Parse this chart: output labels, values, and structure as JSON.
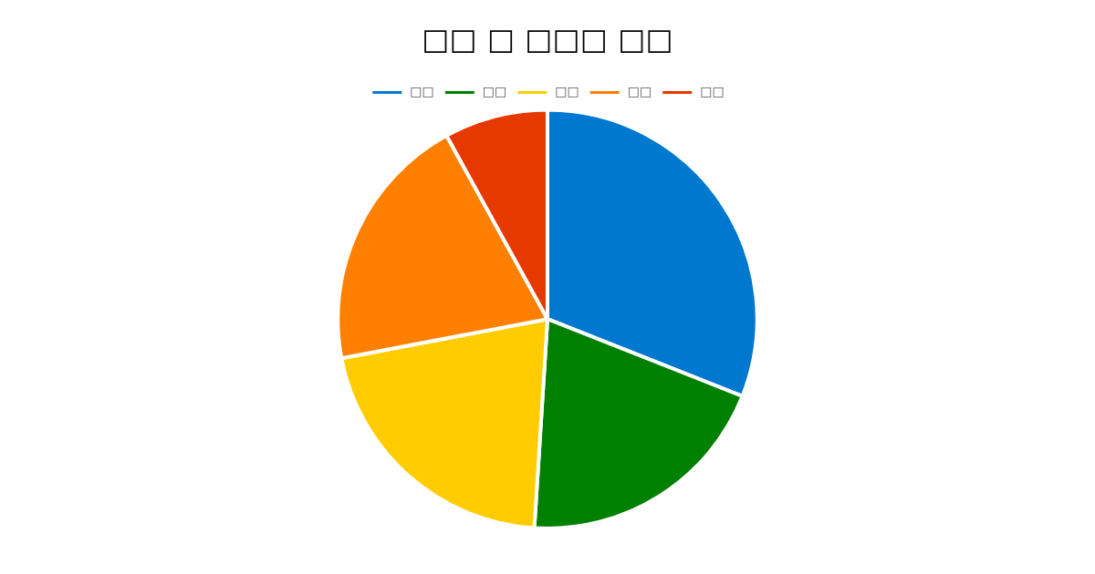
{
  "chart_data": {
    "type": "pie",
    "title": "□□ □ □□□ □□",
    "categories": [
      "□□",
      "□□",
      "□□",
      "□□",
      "□□"
    ],
    "values": [
      31,
      20,
      21,
      20,
      8
    ],
    "colors": [
      "#0078cf",
      "#008000",
      "#ffcc00",
      "#ff8000",
      "#e63900"
    ],
    "legend": "top"
  }
}
